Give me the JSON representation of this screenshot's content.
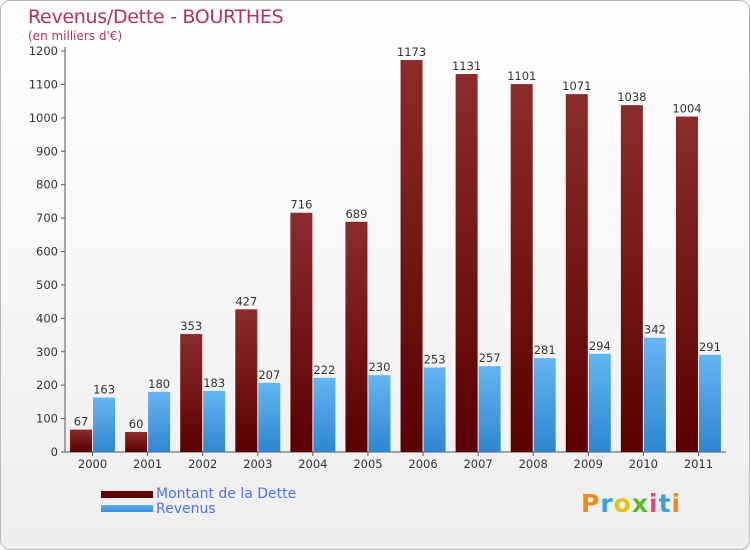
{
  "title": "Revenus/Dette - BOURTHES",
  "subtitle": "(en milliers d'€)",
  "colors": {
    "dette": "#6b0c0c",
    "revenus": "#4aa3e8",
    "title": "#b0306a",
    "legend_text": "#4f74e8"
  },
  "legend": {
    "dette_label": "Montant de la Dette",
    "revenus_label": "Revenus"
  },
  "logo": {
    "text": "Proxiti"
  },
  "chart_data": {
    "type": "bar",
    "title": "Revenus/Dette - BOURTHES",
    "ylabel": "(en milliers d'€)",
    "xlabel": "",
    "ylim": [
      0,
      1200
    ],
    "yticks": [
      0,
      100,
      200,
      300,
      400,
      500,
      600,
      700,
      800,
      900,
      1000,
      1100,
      1200
    ],
    "categories": [
      "2000",
      "2001",
      "2002",
      "2003",
      "2004",
      "2005",
      "2006",
      "2007",
      "2008",
      "2009",
      "2010",
      "2011"
    ],
    "series": [
      {
        "name": "Montant de la Dette",
        "values": [
          67,
          60,
          353,
          427,
          716,
          689,
          1173,
          1131,
          1101,
          1071,
          1038,
          1004
        ]
      },
      {
        "name": "Revenus",
        "values": [
          163,
          180,
          183,
          207,
          222,
          230,
          253,
          257,
          281,
          294,
          342,
          291
        ]
      }
    ],
    "grid": false,
    "legend_position": "bottom-left"
  }
}
